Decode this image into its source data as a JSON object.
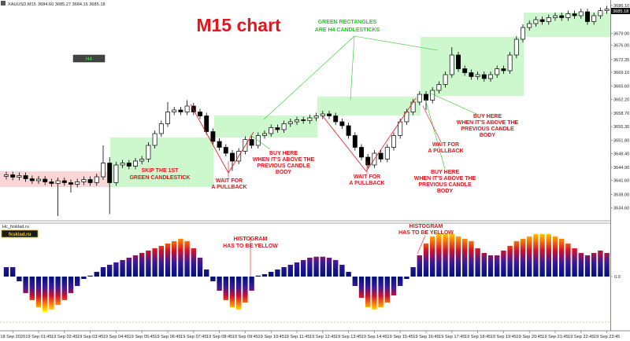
{
  "header": {
    "symbol": "XAUUSD,M15",
    "quote": "3684.60 3685.27 3684.15 3685.18"
  },
  "title": "M15  chart",
  "button": "H4",
  "current_price": "3685.18",
  "annotations": {
    "green_note": [
      "GREEN RECTANGLES",
      "ARE  H4  CANDLESTICKS"
    ],
    "skip": [
      "SKIP THE 1ST",
      "GREEN CANDLESTICK"
    ],
    "pullback_1": [
      "WAIT FOR",
      "A  PULLBACK"
    ],
    "buy_1": [
      "BUY HERE",
      "WHEN IT'S ABOVE THE",
      "PREVIOUS CANDLE",
      "BODY"
    ],
    "pullback_2": [
      "WAIT FOR",
      "A  PULLBACK"
    ],
    "buy_2": [
      "BUY HERE",
      "WHEN IT'S ABOVE THE",
      "PREVIOUS CANDLE",
      "BODY"
    ],
    "pullback_3": [
      "WAIT FOR",
      "A  PULLBACK"
    ],
    "buy_3": [
      "BUY HERE",
      "WHEN IT'S ABOVE THE",
      "PREVIOUS CANDLE",
      "BODY"
    ],
    "hist_note_1": [
      "HISTOGRAM",
      "HAS TO BE YELLOW"
    ],
    "hist_note_2": [
      "HISTOGRAM",
      "HAS TO BE YELLOW"
    ]
  },
  "price_axis": {
    "ylim": [
      3631.5,
      3687.5
    ],
    "yticks": [
      {
        "value": 3686.1,
        "label": "3686.10"
      },
      {
        "value": 3679.0,
        "label": "3679.00"
      },
      {
        "value": 3676.0,
        "label": "3676.00"
      },
      3672.35,
      {
        "value": 3669.1,
        "label": "3669.10"
      },
      {
        "value": 3665.6,
        "label": "3665.60"
      },
      {
        "value": 3662.2,
        "label": "3662.20"
      },
      {
        "value": 3658.7,
        "label": "3658.70"
      },
      {
        "value": 3655.3,
        "label": "3655.30"
      },
      {
        "value": 3651.8,
        "label": "3651.80"
      },
      {
        "value": 3648.4,
        "label": "3648.40"
      },
      {
        "value": 3644.9,
        "label": "3644.90"
      },
      {
        "value": 3641.6,
        "label": "3641.60"
      },
      {
        "value": 3638.0,
        "label": "3638.00"
      },
      {
        "value": 3634.6,
        "label": "3634.60"
      }
    ]
  },
  "candles": [
    [
      3642.6,
      3643.8,
      3641.8,
      3643.0
    ],
    [
      3643.0,
      3643.8,
      3641.6,
      3642.4
    ],
    [
      3642.4,
      3643.6,
      3641.6,
      3642.8
    ],
    [
      3642.8,
      3643.6,
      3641.2,
      3642.0
    ],
    [
      3642.0,
      3642.8,
      3640.7,
      3641.5
    ],
    [
      3641.5,
      3642.7,
      3640.7,
      3641.9
    ],
    [
      3641.9,
      3642.7,
      3640.4,
      3641.2
    ],
    [
      3641.2,
      3642.0,
      3640.0,
      3640.8
    ],
    [
      3640.8,
      3642.3,
      3632.5,
      3641.5
    ],
    [
      3641.5,
      3642.3,
      3640.2,
      3641.0
    ],
    [
      3641.0,
      3641.8,
      3638.5,
      3640.6
    ],
    [
      3640.6,
      3642.0,
      3639.8,
      3641.2
    ],
    [
      3641.2,
      3642.6,
      3640.4,
      3641.8
    ],
    [
      3641.8,
      3642.6,
      3640.2,
      3641.0
    ],
    [
      3641.0,
      3643.3,
      3640.2,
      3642.5
    ],
    [
      3642.5,
      3650.5,
      3641.7,
      3646.0
    ],
    [
      3646.0,
      3647.5,
      3633.0,
      3641.0
    ],
    [
      3641.0,
      3646.3,
      3640.2,
      3645.5
    ],
    [
      3645.5,
      3646.8,
      3644.7,
      3646.0
    ],
    [
      3646.0,
      3646.8,
      3644.4,
      3645.2
    ],
    [
      3645.2,
      3647.3,
      3644.4,
      3646.5
    ],
    [
      3646.5,
      3647.8,
      3645.7,
      3647.0
    ],
    [
      3647.0,
      3651.3,
      3646.2,
      3650.5
    ],
    [
      3650.5,
      3654.3,
      3649.7,
      3653.5
    ],
    [
      3653.5,
      3656.8,
      3652.7,
      3656.0
    ],
    [
      3656.0,
      3661.5,
      3655.2,
      3659.0
    ],
    [
      3659.0,
      3660.3,
      3658.2,
      3659.5
    ],
    [
      3659.5,
      3660.3,
      3658.2,
      3659.0
    ],
    [
      3659.0,
      3662.0,
      3658.2,
      3660.5
    ],
    [
      3660.5,
      3661.3,
      3658.2,
      3659.0
    ],
    [
      3659.0,
      3659.8,
      3657.2,
      3658.0
    ],
    [
      3658.0,
      3658.8,
      3653.2,
      3654.0
    ],
    [
      3654.0,
      3654.8,
      3650.7,
      3651.5
    ],
    [
      3651.5,
      3652.3,
      3649.2,
      3650.0
    ],
    [
      3650.0,
      3650.8,
      3647.7,
      3648.5
    ],
    [
      3648.5,
      3649.3,
      3644.0,
      3646.5
    ],
    [
      3646.5,
      3649.8,
      3645.7,
      3649.0
    ],
    [
      3649.0,
      3652.8,
      3648.2,
      3652.0
    ],
    [
      3652.0,
      3652.8,
      3649.7,
      3650.5
    ],
    [
      3650.5,
      3653.8,
      3649.7,
      3653.0
    ],
    [
      3653.0,
      3654.3,
      3652.2,
      3653.5
    ],
    [
      3653.5,
      3655.8,
      3652.7,
      3655.0
    ],
    [
      3655.0,
      3655.8,
      3653.7,
      3654.5
    ],
    [
      3654.5,
      3656.8,
      3653.7,
      3656.0
    ],
    [
      3656.0,
      3657.3,
      3655.2,
      3656.5
    ],
    [
      3656.5,
      3657.8,
      3655.7,
      3657.0
    ],
    [
      3657.0,
      3657.8,
      3656.0,
      3656.8
    ],
    [
      3656.8,
      3658.3,
      3656.0,
      3657.5
    ],
    [
      3657.5,
      3658.8,
      3656.7,
      3658.0
    ],
    [
      3658.0,
      3659.3,
      3657.2,
      3658.5
    ],
    [
      3658.5,
      3659.3,
      3657.2,
      3658.0
    ],
    [
      3658.0,
      3658.8,
      3655.7,
      3656.5
    ],
    [
      3656.5,
      3657.3,
      3654.7,
      3655.5
    ],
    [
      3655.5,
      3656.3,
      3652.2,
      3653.0
    ],
    [
      3653.0,
      3653.8,
      3649.2,
      3650.0
    ],
    [
      3650.0,
      3650.8,
      3646.7,
      3647.5
    ],
    [
      3647.5,
      3648.3,
      3644.7,
      3645.5
    ],
    [
      3645.5,
      3649.3,
      3644.7,
      3648.5
    ],
    [
      3648.5,
      3649.3,
      3646.2,
      3647.0
    ],
    [
      3647.0,
      3650.8,
      3646.2,
      3650.0
    ],
    [
      3650.0,
      3653.8,
      3649.2,
      3653.0
    ],
    [
      3653.0,
      3657.3,
      3652.2,
      3656.5
    ],
    [
      3656.5,
      3659.8,
      3655.7,
      3659.0
    ],
    [
      3659.0,
      3662.3,
      3658.2,
      3661.5
    ],
    [
      3661.5,
      3664.3,
      3660.7,
      3663.5
    ],
    [
      3663.5,
      3664.3,
      3659.5,
      3662.0
    ],
    [
      3662.0,
      3665.3,
      3661.2,
      3664.5
    ],
    [
      3664.5,
      3666.8,
      3663.7,
      3666.0
    ],
    [
      3666.0,
      3669.3,
      3665.2,
      3668.5
    ],
    [
      3668.5,
      3675.5,
      3667.7,
      3673.5
    ],
    [
      3673.5,
      3674.3,
      3669.2,
      3670.0
    ],
    [
      3670.0,
      3670.8,
      3668.2,
      3669.0
    ],
    [
      3669.0,
      3669.8,
      3667.2,
      3668.0
    ],
    [
      3668.0,
      3669.3,
      3667.2,
      3668.5
    ],
    [
      3668.5,
      3669.3,
      3666.7,
      3667.5
    ],
    [
      3667.5,
      3669.3,
      3666.7,
      3668.5
    ],
    [
      3668.5,
      3670.8,
      3667.7,
      3670.0
    ],
    [
      3670.0,
      3670.8,
      3668.7,
      3669.5
    ],
    [
      3669.5,
      3674.3,
      3668.7,
      3673.5
    ],
    [
      3673.5,
      3678.3,
      3672.7,
      3677.5
    ],
    [
      3677.5,
      3681.3,
      3676.7,
      3680.5
    ],
    [
      3680.5,
      3682.3,
      3679.7,
      3681.5
    ],
    [
      3681.5,
      3683.3,
      3680.7,
      3682.5
    ],
    [
      3682.5,
      3683.3,
      3681.2,
      3682.0
    ],
    [
      3682.0,
      3683.8,
      3681.2,
      3683.0
    ],
    [
      3683.0,
      3684.3,
      3682.2,
      3683.5
    ],
    [
      3683.5,
      3684.3,
      3682.2,
      3683.0
    ],
    [
      3683.0,
      3684.8,
      3682.2,
      3684.0
    ],
    [
      3684.0,
      3684.8,
      3682.7,
      3683.5
    ],
    [
      3683.5,
      3685.3,
      3682.7,
      3684.5
    ],
    [
      3684.5,
      3685.3,
      3681.2,
      3682.0
    ],
    [
      3682.0,
      3684.3,
      3681.2,
      3683.5
    ],
    [
      3683.5,
      3685.6,
      3682.7,
      3684.8
    ],
    [
      3684.8,
      3686.0,
      3684.0,
      3685.2
    ]
  ],
  "indicator": {
    "name": "Hc_fxsklad.ru",
    "badge": "fxsklad.ru",
    "ylim": [
      -1.13,
      1.13
    ],
    "yticks": [
      {
        "value": 0,
        "label": "0.0"
      }
    ],
    "values": [
      0.2,
      0.2,
      -0.1,
      -0.35,
      -0.5,
      -0.65,
      -0.75,
      -0.7,
      -0.6,
      -0.5,
      -0.35,
      -0.2,
      -0.05,
      0.02,
      0.1,
      0.2,
      0.25,
      0.3,
      0.35,
      0.4,
      0.45,
      0.5,
      0.55,
      0.6,
      0.65,
      0.7,
      0.75,
      0.8,
      0.75,
      0.6,
      0.4,
      0.15,
      -0.1,
      -0.3,
      -0.5,
      -0.65,
      -0.7,
      -0.55,
      -0.3,
      0.02,
      0.05,
      0.1,
      0.15,
      0.2,
      0.25,
      0.3,
      0.35,
      0.4,
      0.42,
      0.42,
      0.4,
      0.35,
      0.25,
      0.1,
      -0.2,
      -0.45,
      -0.65,
      -0.7,
      -0.65,
      -0.55,
      -0.4,
      -0.2,
      -0.05,
      0.2,
      0.45,
      0.7,
      0.85,
      0.9,
      0.9,
      0.9,
      0.85,
      0.8,
      0.75,
      0.6,
      0.5,
      0.45,
      0.45,
      0.55,
      0.65,
      0.75,
      0.8,
      0.85,
      0.9,
      0.9,
      0.9,
      0.85,
      0.8,
      0.7,
      0.6,
      0.5,
      0.45,
      0.5,
      0.55,
      0.5
    ]
  },
  "time_axis": {
    "labels": [
      "18 Sep 2020",
      "19 Sep 01:45",
      "19 Sep 02:45",
      "19 Sep 03:45",
      "19 Sep 04:45",
      "19 Sep 05:45",
      "19 Sep 06:45",
      "19 Sep 07:45",
      "19 Sep 08:45",
      "19 Sep 09:45",
      "19 Sep 10:45",
      "19 Sep 11:45",
      "19 Sep 12:45",
      "19 Sep 13:45",
      "19 Sep 14:45",
      "19 Sep 15:45",
      "19 Sep 16:45",
      "19 Sep 17:45",
      "19 Sep 18:45",
      "19 Sep 19:45",
      "19 Sep 20:45",
      "19 Sep 21:45",
      "19 Sep 22:45",
      "19 Sep 23:45"
    ]
  }
}
